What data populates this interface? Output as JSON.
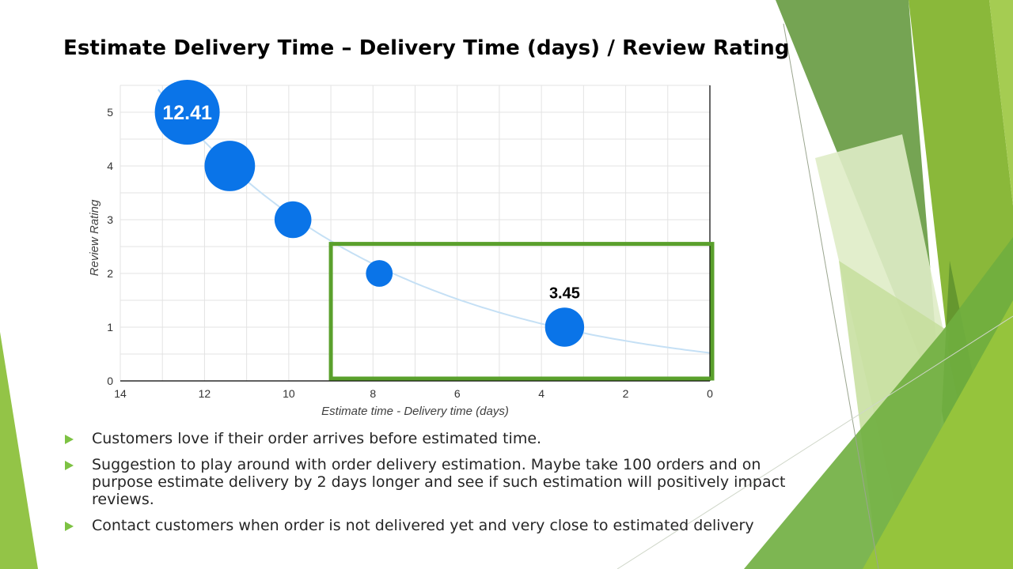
{
  "slide": {
    "title": "Estimate Delivery Time – Delivery Time (days) / Review Rating",
    "bullets": [
      "Customers love if their order arrives before estimated time.",
      "Suggestion to play around with order delivery estimation. Maybe take 100 orders and on purpose estimate delivery by 2 days longer and see if such estimation will positively impact reviews.",
      "Contact customers when order is not delivered yet and very close to estimated delivery"
    ],
    "colors": {
      "bubble": "#0a74e8",
      "trend": "#c5e0f5",
      "highlight": "#5aa02c",
      "bullet_arrow": "#7dc243"
    }
  },
  "chart_data": {
    "type": "scatter",
    "xlabel": "Estimate time - Delivery time (days)",
    "ylabel": "Review Rating",
    "xlim": [
      14,
      0
    ],
    "ylim": [
      0,
      5.5
    ],
    "x_ticks": [
      14,
      12,
      10,
      8,
      6,
      4,
      2,
      0
    ],
    "y_ticks": [
      0,
      1,
      2,
      3,
      4,
      5
    ],
    "grid": true,
    "points": [
      {
        "x": 12.41,
        "y": 5,
        "size": 12.41,
        "label": "12.41"
      },
      {
        "x": 11.4,
        "y": 4,
        "size": 7.5,
        "label": ""
      },
      {
        "x": 9.9,
        "y": 3,
        "size": 4.0,
        "label": ""
      },
      {
        "x": 7.85,
        "y": 2,
        "size": 2.1,
        "label": ""
      },
      {
        "x": 3.45,
        "y": 1,
        "size": 4.5,
        "label": "3.45"
      }
    ],
    "highlight_region": {
      "x": [
        9,
        0
      ],
      "y": [
        0,
        2.55
      ]
    },
    "trendline": "exponential"
  }
}
